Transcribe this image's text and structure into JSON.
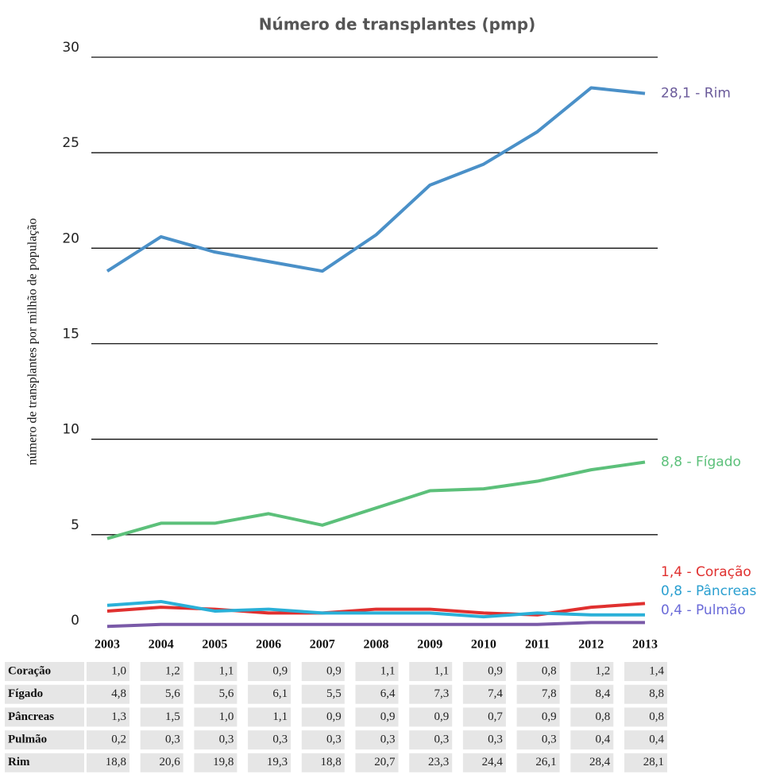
{
  "chart_data": {
    "type": "line",
    "title": "Número de transplantes (pmp)",
    "y_label": "número de transplantes por milhão de população",
    "categories": [
      "2003",
      "2004",
      "2005",
      "2006",
      "2007",
      "2008",
      "2009",
      "2010",
      "2011",
      "2012",
      "2013"
    ],
    "ylim": [
      0,
      30
    ],
    "yticks": [
      0,
      5,
      10,
      15,
      20,
      25,
      30
    ],
    "grid": true,
    "series": [
      {
        "name": "Coração",
        "color": "#e0302f",
        "label_color": "#e0302f",
        "end_label": "1,4 - Coração",
        "values": [
          1.0,
          1.2,
          1.1,
          0.9,
          0.9,
          1.1,
          1.1,
          0.9,
          0.8,
          1.2,
          1.4
        ],
        "value_labels": [
          "1,0",
          "1,2",
          "1,1",
          "0,9",
          "0,9",
          "1,1",
          "1,1",
          "0,9",
          "0,8",
          "1,2",
          "1,4"
        ]
      },
      {
        "name": "Fígado",
        "color": "#5cc07a",
        "label_color": "#5cc07a",
        "end_label": "8,8 - Fígado",
        "values": [
          4.8,
          5.6,
          5.6,
          6.1,
          5.5,
          6.4,
          7.3,
          7.4,
          7.8,
          8.4,
          8.8
        ],
        "value_labels": [
          "4,8",
          "5,6",
          "5,6",
          "6,1",
          "5,5",
          "6,4",
          "7,3",
          "7,4",
          "7,8",
          "8,4",
          "8,8"
        ]
      },
      {
        "name": "Pâncreas",
        "color": "#2ab0d8",
        "label_color": "#2a9fd0",
        "end_label": "0,8 - Pâncreas",
        "values": [
          1.3,
          1.5,
          1.0,
          1.1,
          0.9,
          0.9,
          0.9,
          0.7,
          0.9,
          0.8,
          0.8
        ],
        "value_labels": [
          "1,3",
          "1,5",
          "1,0",
          "1,1",
          "0,9",
          "0,9",
          "0,9",
          "0,7",
          "0,9",
          "0,8",
          "0,8"
        ]
      },
      {
        "name": "Pulmão",
        "color": "#7a5aa8",
        "label_color": "#6a6ad8",
        "end_label": "0,4 - Pulmão",
        "values": [
          0.2,
          0.3,
          0.3,
          0.3,
          0.3,
          0.3,
          0.3,
          0.3,
          0.3,
          0.4,
          0.4
        ],
        "value_labels": [
          "0,2",
          "0,3",
          "0,3",
          "0,3",
          "0,3",
          "0,3",
          "0,3",
          "0,3",
          "0,3",
          "0,4",
          "0,4"
        ]
      },
      {
        "name": "Rim",
        "color": "#4a90c8",
        "label_color": "#6a5a9a",
        "end_label": "28,1 - Rim",
        "values": [
          18.8,
          20.6,
          19.8,
          19.3,
          18.8,
          20.7,
          23.3,
          24.4,
          26.1,
          28.4,
          28.1
        ],
        "value_labels": [
          "18,8",
          "20,6",
          "19,8",
          "19,3",
          "18,8",
          "20,7",
          "23,3",
          "24,4",
          "26,1",
          "28,4",
          "28,1"
        ]
      }
    ]
  }
}
